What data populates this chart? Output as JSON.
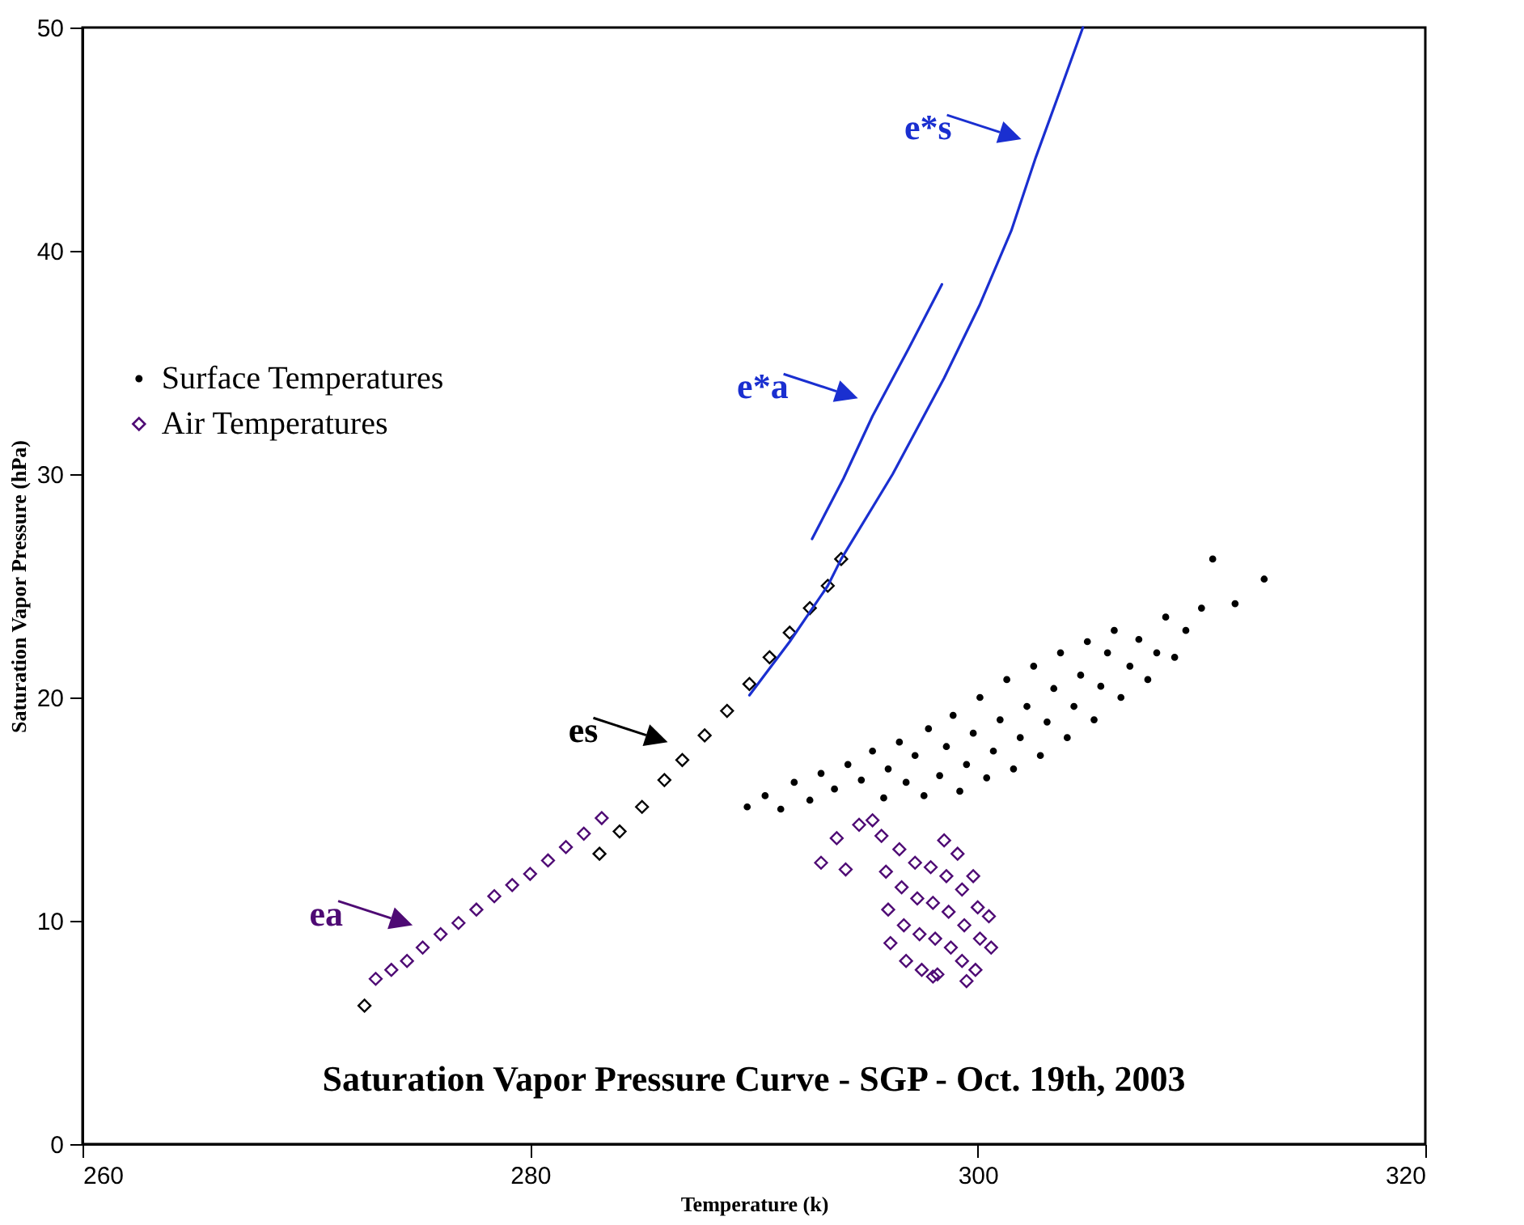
{
  "chart_data": {
    "type": "scatter",
    "xlabel": "Temperature (k)",
    "ylabel": "Saturation Vapor Pressure (hPa)",
    "xlim": [
      260,
      320
    ],
    "ylim": [
      0,
      50
    ],
    "xticks": [
      260,
      280,
      300,
      320
    ],
    "yticks": [
      0,
      10,
      20,
      30,
      40,
      50
    ],
    "legend": "top left",
    "series": [
      {
        "name": "Surface Temperatures",
        "marker": "circle",
        "color": "#000000",
        "x": [
          289.7,
          290.5,
          291.2,
          291.8,
          292.5,
          293.0,
          293.6,
          294.2,
          294.8,
          295.3,
          295.8,
          296.0,
          296.5,
          296.8,
          297.2,
          297.6,
          297.8,
          298.3,
          298.6,
          298.9,
          299.2,
          299.5,
          299.8,
          300.1,
          300.4,
          300.7,
          301.0,
          301.3,
          301.6,
          301.9,
          302.2,
          302.5,
          302.8,
          303.1,
          303.4,
          303.7,
          304.0,
          304.3,
          304.6,
          304.9,
          305.2,
          305.5,
          305.8,
          306.1,
          306.4,
          306.8,
          307.2,
          307.6,
          308.0,
          308.4,
          308.8,
          309.3,
          310.0,
          310.5,
          311.5,
          312.8
        ],
        "values": [
          15.1,
          15.6,
          15.0,
          16.2,
          15.4,
          16.6,
          15.9,
          17.0,
          16.3,
          17.6,
          15.5,
          16.8,
          18.0,
          16.2,
          17.4,
          15.6,
          18.6,
          16.5,
          17.8,
          19.2,
          15.8,
          17.0,
          18.4,
          20.0,
          16.4,
          17.6,
          19.0,
          20.8,
          16.8,
          18.2,
          19.6,
          21.4,
          17.4,
          18.9,
          20.4,
          22.0,
          18.2,
          19.6,
          21.0,
          22.5,
          19.0,
          20.5,
          22.0,
          23.0,
          20.0,
          21.4,
          22.6,
          20.8,
          22.0,
          23.6,
          21.8,
          23.0,
          24.0,
          26.2,
          24.2,
          25.3
        ]
      },
      {
        "name": "Air Temperatures",
        "marker": "diamond",
        "color": "#4e0a74",
        "x": [
          293.0,
          294.1,
          293.7,
          294.7,
          295.3,
          299.5,
          298.2,
          295.7,
          295.9,
          296.0,
          296.1,
          296.5,
          296.6,
          296.7,
          296.8,
          297.2,
          297.3,
          297.4,
          297.5,
          297.9,
          298.0,
          298.1,
          298.0,
          298.5,
          298.6,
          298.7,
          298.8,
          299.1,
          299.3,
          299.4,
          299.3,
          299.8,
          300.0,
          300.1,
          299.9,
          300.5,
          300.6
        ],
        "values": [
          12.6,
          12.3,
          13.7,
          14.3,
          14.5,
          7.3,
          7.6,
          13.8,
          12.2,
          10.5,
          9.0,
          13.2,
          11.5,
          9.8,
          8.2,
          12.6,
          11.0,
          9.4,
          7.8,
          12.4,
          10.8,
          9.2,
          7.5,
          13.6,
          12.0,
          10.4,
          8.8,
          13.0,
          11.4,
          9.8,
          8.2,
          12.0,
          10.6,
          9.2,
          7.8,
          10.2,
          8.8
        ]
      },
      {
        "marker": "diamond",
        "color": "#000000",
        "x": [
          272.6,
          283.1,
          284.0,
          285.0,
          286.0,
          286.8,
          287.8,
          288.8,
          289.8,
          290.7,
          291.6,
          292.5,
          293.3,
          293.9
        ],
        "values": [
          6.2,
          13.0,
          14.0,
          15.1,
          16.3,
          17.2,
          18.3,
          19.4,
          20.6,
          21.8,
          22.9,
          24.0,
          25.0,
          26.2
        ]
      },
      {
        "marker": "diamond",
        "color": "#4e0a74",
        "x": [
          273.1,
          273.8,
          274.5,
          275.2,
          276.0,
          276.8,
          277.6,
          278.4,
          279.2,
          280.0,
          280.8,
          281.6,
          282.4,
          283.2
        ],
        "values": [
          7.4,
          7.8,
          8.2,
          8.8,
          9.4,
          9.9,
          10.5,
          11.1,
          11.6,
          12.1,
          12.7,
          13.3,
          13.9,
          14.6
        ]
      },
      {
        "type": "line",
        "color": "#1a2fd0",
        "x": [
          292.6,
          294.0,
          295.3,
          296.9,
          298.4
        ],
        "values": [
          27.1,
          29.8,
          32.6,
          35.6,
          38.5
        ]
      },
      {
        "type": "line",
        "color": "#1a2fd0",
        "x": [
          289.8,
          291.6,
          293.3,
          293.9,
          296.2,
          298.5,
          300.1,
          301.5,
          302.6,
          303.8,
          304.7
        ],
        "values": [
          20.1,
          22.5,
          25.0,
          26.2,
          30.0,
          34.3,
          37.6,
          40.9,
          44.2,
          47.5,
          50.0
        ]
      }
    ],
    "annotations": [
      {
        "text": "e*s",
        "x": 302.6,
        "y": 44.2
      },
      {
        "text": "e*a",
        "x": 295.3,
        "y": 32.6
      },
      {
        "text": "es",
        "x": 286.8,
        "y": 17.2
      },
      {
        "text": "ea",
        "x": 275.4,
        "y": 9.0
      },
      "Saturation Vapor Pressure Curve - SGP - Oct. 19th, 2003"
    ]
  }
}
